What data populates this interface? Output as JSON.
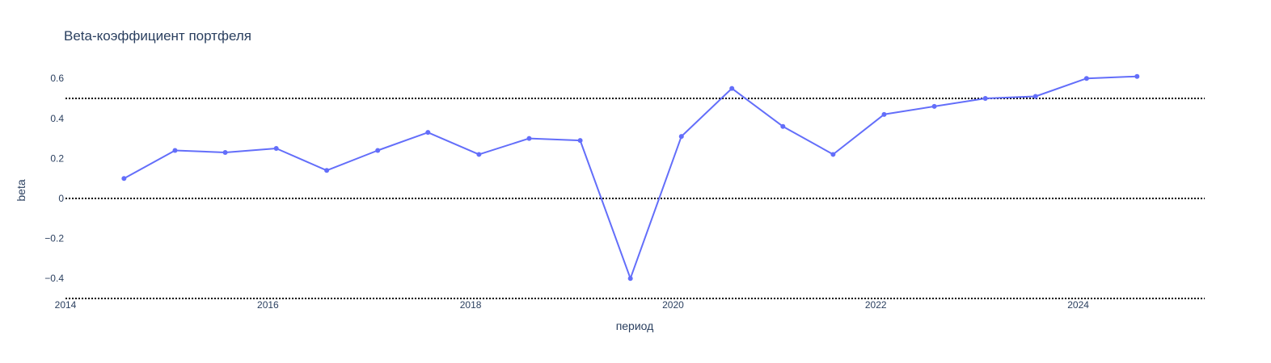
{
  "chart_data": {
    "type": "line",
    "title": "Beta-коэффициент портфеля",
    "xlabel": "период",
    "ylabel": "beta",
    "xlim": [
      "2014-01-01",
      "2025-04-01"
    ],
    "ylim": [
      -0.5,
      0.75
    ],
    "x_ticks": [
      "2014",
      "2016",
      "2018",
      "2020",
      "2022",
      "2024"
    ],
    "y_ticks": [
      {
        "value": 0.6,
        "label": "0.6"
      },
      {
        "value": 0.4,
        "label": "0.4"
      },
      {
        "value": 0.2,
        "label": "0.2"
      },
      {
        "value": 0,
        "label": "0"
      },
      {
        "value": -0.2,
        "label": "−0.2"
      },
      {
        "value": -0.4,
        "label": "−0.4"
      }
    ],
    "grid": false,
    "legend": "none",
    "series": [
      {
        "color": "#636efa",
        "x": [
          "2014-07-31",
          "2015-01-31",
          "2015-07-31",
          "2016-01-31",
          "2016-07-31",
          "2017-01-31",
          "2017-07-31",
          "2018-01-31",
          "2018-07-31",
          "2019-01-31",
          "2019-07-31",
          "2020-01-31",
          "2020-07-31",
          "2021-01-31",
          "2021-07-31",
          "2022-01-31",
          "2022-07-31",
          "2023-01-31",
          "2023-07-31",
          "2024-01-31",
          "2024-07-31"
        ],
        "y": [
          0.1,
          0.24,
          0.23,
          0.25,
          0.14,
          0.24,
          0.33,
          0.22,
          0.3,
          0.29,
          -0.4,
          0.31,
          0.55,
          0.36,
          0.22,
          0.42,
          0.46,
          0.5,
          0.51,
          0.6,
          0.61
        ]
      }
    ],
    "reference_lines": [
      {
        "y": 0.5,
        "color": "#000000",
        "style": "dotted"
      },
      {
        "y": 0,
        "color": "#000000",
        "style": "dotted"
      },
      {
        "y": -0.5,
        "color": "#000000",
        "style": "dotted"
      }
    ]
  }
}
